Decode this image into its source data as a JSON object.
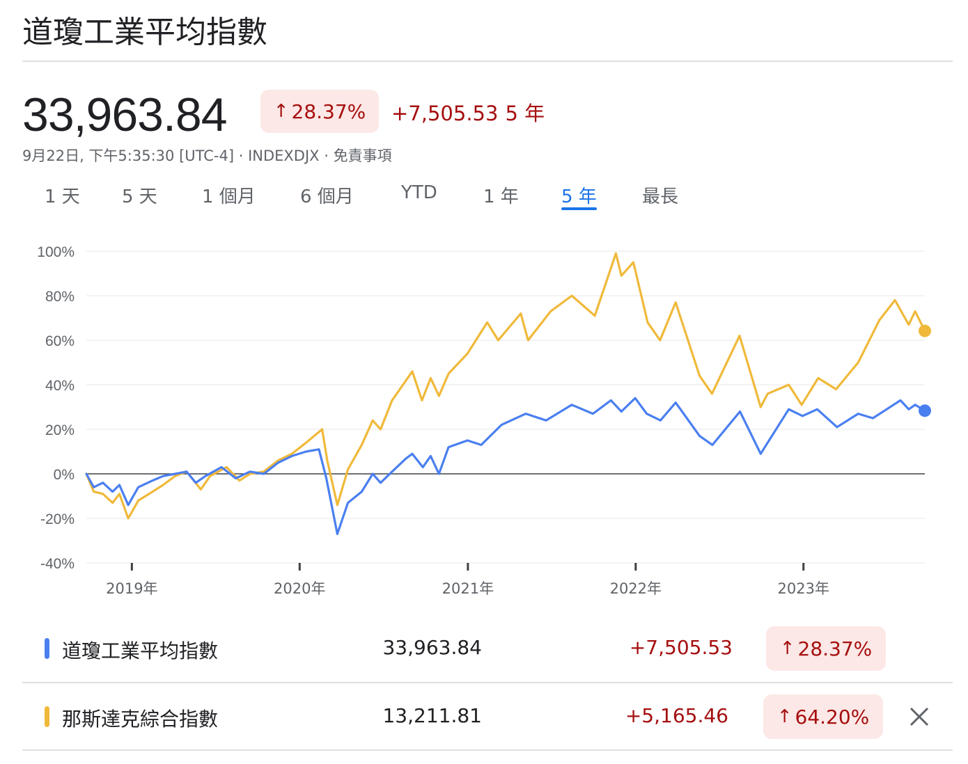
{
  "header": {
    "title": "道瓊工業平均指數",
    "price": "33,963.84",
    "pct_change": "28.37%",
    "abs_change": "+7,505.53",
    "period_label": "5 年",
    "timestamp": "9月22日, 下午5:35:30 [UTC-4]",
    "separator": " · ",
    "ticker": "INDEXDJX",
    "disclaimer": "免責事項"
  },
  "tabs": [
    {
      "label": "1 天"
    },
    {
      "label": "5 天"
    },
    {
      "label": "1 個月"
    },
    {
      "label": "6 個月"
    },
    {
      "label": "YTD"
    },
    {
      "label": "1 年"
    },
    {
      "label": "5 年",
      "active": true
    },
    {
      "label": "最長"
    }
  ],
  "legend": [
    {
      "name": "道瓊工業平均指數",
      "value": "33,963.84",
      "change": "+7,505.53",
      "pct": "28.37%",
      "color": "#4a7ff0"
    },
    {
      "name": "那斯達克綜合指數",
      "value": "13,211.81",
      "change": "+5,165.46",
      "pct": "64.20%",
      "color": "#f0b93a"
    }
  ],
  "icons": {
    "up_arrow": "arrow-up-icon",
    "close": "close-icon"
  },
  "chart_data": {
    "type": "line",
    "y_tick_labels": [
      "100%",
      "80%",
      "60%",
      "40%",
      "20%",
      "0%",
      "-20%",
      "-40%"
    ],
    "ylim": [
      -40,
      100
    ],
    "x_tick_labels": [
      "2019年",
      "2020年",
      "2021年",
      "2022年",
      "2023年"
    ],
    "x_tick_dates": [
      "2019-01-01",
      "2020-01-01",
      "2021-01-01",
      "2022-01-01",
      "2023-01-01"
    ],
    "x_range": [
      "2018-09-24",
      "2023-09-22"
    ],
    "grid": true,
    "series": [
      {
        "name": "道瓊工業平均指數",
        "color": "#4a7ff0",
        "points": [
          [
            "2018-09-24",
            0
          ],
          [
            "2018-10-10",
            -6
          ],
          [
            "2018-10-30",
            -4
          ],
          [
            "2018-11-20",
            -8
          ],
          [
            "2018-12-05",
            -5
          ],
          [
            "2018-12-24",
            -14
          ],
          [
            "2019-01-15",
            -6
          ],
          [
            "2019-02-15",
            -3
          ],
          [
            "2019-03-10",
            -1
          ],
          [
            "2019-04-05",
            0
          ],
          [
            "2019-04-30",
            1
          ],
          [
            "2019-05-20",
            -4
          ],
          [
            "2019-06-10",
            -1
          ],
          [
            "2019-07-15",
            3
          ],
          [
            "2019-08-15",
            -2
          ],
          [
            "2019-09-15",
            1
          ],
          [
            "2019-10-15",
            0
          ],
          [
            "2019-11-15",
            5
          ],
          [
            "2019-12-15",
            8
          ],
          [
            "2020-01-15",
            10
          ],
          [
            "2020-02-12",
            11
          ],
          [
            "2020-02-28",
            -2
          ],
          [
            "2020-03-23",
            -27
          ],
          [
            "2020-04-15",
            -13
          ],
          [
            "2020-05-15",
            -8
          ],
          [
            "2020-06-08",
            0
          ],
          [
            "2020-06-25",
            -4
          ],
          [
            "2020-07-20",
            1
          ],
          [
            "2020-08-20",
            7
          ],
          [
            "2020-09-02",
            9
          ],
          [
            "2020-09-25",
            3
          ],
          [
            "2020-10-12",
            8
          ],
          [
            "2020-10-30",
            0
          ],
          [
            "2020-11-20",
            12
          ],
          [
            "2020-12-31",
            15
          ],
          [
            "2021-01-30",
            13
          ],
          [
            "2021-03-15",
            22
          ],
          [
            "2021-05-07",
            27
          ],
          [
            "2021-06-20",
            24
          ],
          [
            "2021-08-15",
            31
          ],
          [
            "2021-09-30",
            27
          ],
          [
            "2021-11-08",
            33
          ],
          [
            "2021-12-01",
            28
          ],
          [
            "2021-12-31",
            34
          ],
          [
            "2022-01-25",
            27
          ],
          [
            "2022-02-24",
            24
          ],
          [
            "2022-03-29",
            32
          ],
          [
            "2022-05-20",
            17
          ],
          [
            "2022-06-17",
            13
          ],
          [
            "2022-08-16",
            28
          ],
          [
            "2022-09-30",
            9
          ],
          [
            "2022-10-15",
            14
          ],
          [
            "2022-11-30",
            29
          ],
          [
            "2022-12-30",
            26
          ],
          [
            "2023-01-31",
            29
          ],
          [
            "2023-03-15",
            21
          ],
          [
            "2023-04-30",
            27
          ],
          [
            "2023-06-01",
            25
          ],
          [
            "2023-07-31",
            33
          ],
          [
            "2023-08-18",
            29
          ],
          [
            "2023-09-01",
            31
          ],
          [
            "2023-09-22",
            28.37
          ]
        ]
      },
      {
        "name": "那斯達克綜合指數",
        "color": "#f0b93a",
        "points": [
          [
            "2018-09-24",
            0
          ],
          [
            "2018-10-10",
            -8
          ],
          [
            "2018-10-30",
            -9
          ],
          [
            "2018-11-20",
            -13
          ],
          [
            "2018-12-05",
            -9
          ],
          [
            "2018-12-24",
            -20
          ],
          [
            "2019-01-15",
            -12
          ],
          [
            "2019-02-15",
            -8
          ],
          [
            "2019-03-10",
            -5
          ],
          [
            "2019-04-05",
            -1
          ],
          [
            "2019-04-30",
            1
          ],
          [
            "2019-05-31",
            -7
          ],
          [
            "2019-06-20",
            -1
          ],
          [
            "2019-07-26",
            3
          ],
          [
            "2019-08-23",
            -3
          ],
          [
            "2019-09-15",
            0
          ],
          [
            "2019-10-15",
            1
          ],
          [
            "2019-11-15",
            6
          ],
          [
            "2019-12-15",
            9
          ],
          [
            "2020-01-15",
            14
          ],
          [
            "2020-02-19",
            20
          ],
          [
            "2020-03-01",
            6
          ],
          [
            "2020-03-23",
            -14
          ],
          [
            "2020-04-15",
            2
          ],
          [
            "2020-05-15",
            13
          ],
          [
            "2020-06-08",
            24
          ],
          [
            "2020-06-25",
            20
          ],
          [
            "2020-07-20",
            33
          ],
          [
            "2020-09-02",
            46
          ],
          [
            "2020-09-23",
            33
          ],
          [
            "2020-10-12",
            43
          ],
          [
            "2020-10-30",
            35
          ],
          [
            "2020-11-20",
            45
          ],
          [
            "2020-12-31",
            54
          ],
          [
            "2021-02-12",
            68
          ],
          [
            "2021-03-08",
            60
          ],
          [
            "2021-04-26",
            72
          ],
          [
            "2021-05-12",
            60
          ],
          [
            "2021-06-30",
            73
          ],
          [
            "2021-08-15",
            80
          ],
          [
            "2021-10-04",
            71
          ],
          [
            "2021-11-19",
            99
          ],
          [
            "2021-12-01",
            89
          ],
          [
            "2021-12-27",
            95
          ],
          [
            "2022-01-27",
            68
          ],
          [
            "2022-02-23",
            60
          ],
          [
            "2022-03-29",
            77
          ],
          [
            "2022-05-20",
            44
          ],
          [
            "2022-06-16",
            36
          ],
          [
            "2022-08-15",
            62
          ],
          [
            "2022-09-30",
            30
          ],
          [
            "2022-10-15",
            36
          ],
          [
            "2022-11-30",
            40
          ],
          [
            "2022-12-28",
            31
          ],
          [
            "2023-02-02",
            43
          ],
          [
            "2023-03-13",
            38
          ],
          [
            "2023-04-30",
            50
          ],
          [
            "2023-06-15",
            69
          ],
          [
            "2023-07-19",
            78
          ],
          [
            "2023-08-18",
            67
          ],
          [
            "2023-09-01",
            73
          ],
          [
            "2023-09-22",
            64.2
          ]
        ]
      }
    ]
  }
}
